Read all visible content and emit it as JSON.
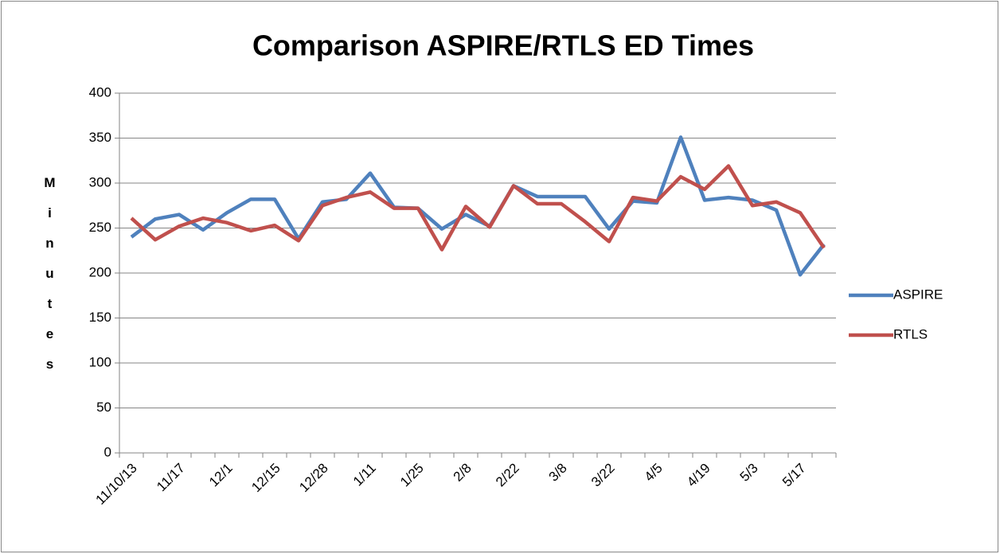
{
  "chart_data": {
    "type": "line",
    "title": "Comparison ASPIRE/RTLS ED Times",
    "y_label": "Minutes",
    "categories": [
      "11/10/13",
      null,
      "11/17",
      null,
      "12/1",
      null,
      "12/15",
      null,
      "12/28",
      null,
      "1/11",
      null,
      "1/25",
      null,
      "2/8",
      null,
      "2/22",
      null,
      "3/8",
      null,
      "3/22",
      null,
      "4/5",
      null,
      "4/19",
      null,
      "5/3",
      null,
      "5/17",
      null
    ],
    "series": [
      {
        "name": "ASPIRE",
        "color": "#4f81bd",
        "values": [
          240,
          260,
          265,
          248,
          267,
          282,
          282,
          238,
          279,
          282,
          311,
          273,
          272,
          249,
          265,
          252,
          297,
          285,
          285,
          285,
          249,
          280,
          278,
          351,
          281,
          284,
          281,
          270,
          198,
          232
        ]
      },
      {
        "name": "RTLS",
        "color": "#c0504d",
        "values": [
          261,
          237,
          252,
          261,
          256,
          247,
          253,
          236,
          275,
          284,
          290,
          272,
          272,
          226,
          274,
          251,
          297,
          277,
          277,
          257,
          235,
          284,
          280,
          307,
          293,
          319,
          275,
          279,
          267,
          228
        ]
      }
    ],
    "ylim": [
      0,
      400
    ],
    "yticks": [
      0,
      50,
      100,
      150,
      200,
      250,
      300,
      350,
      400
    ],
    "grid": true,
    "legend": "right"
  }
}
